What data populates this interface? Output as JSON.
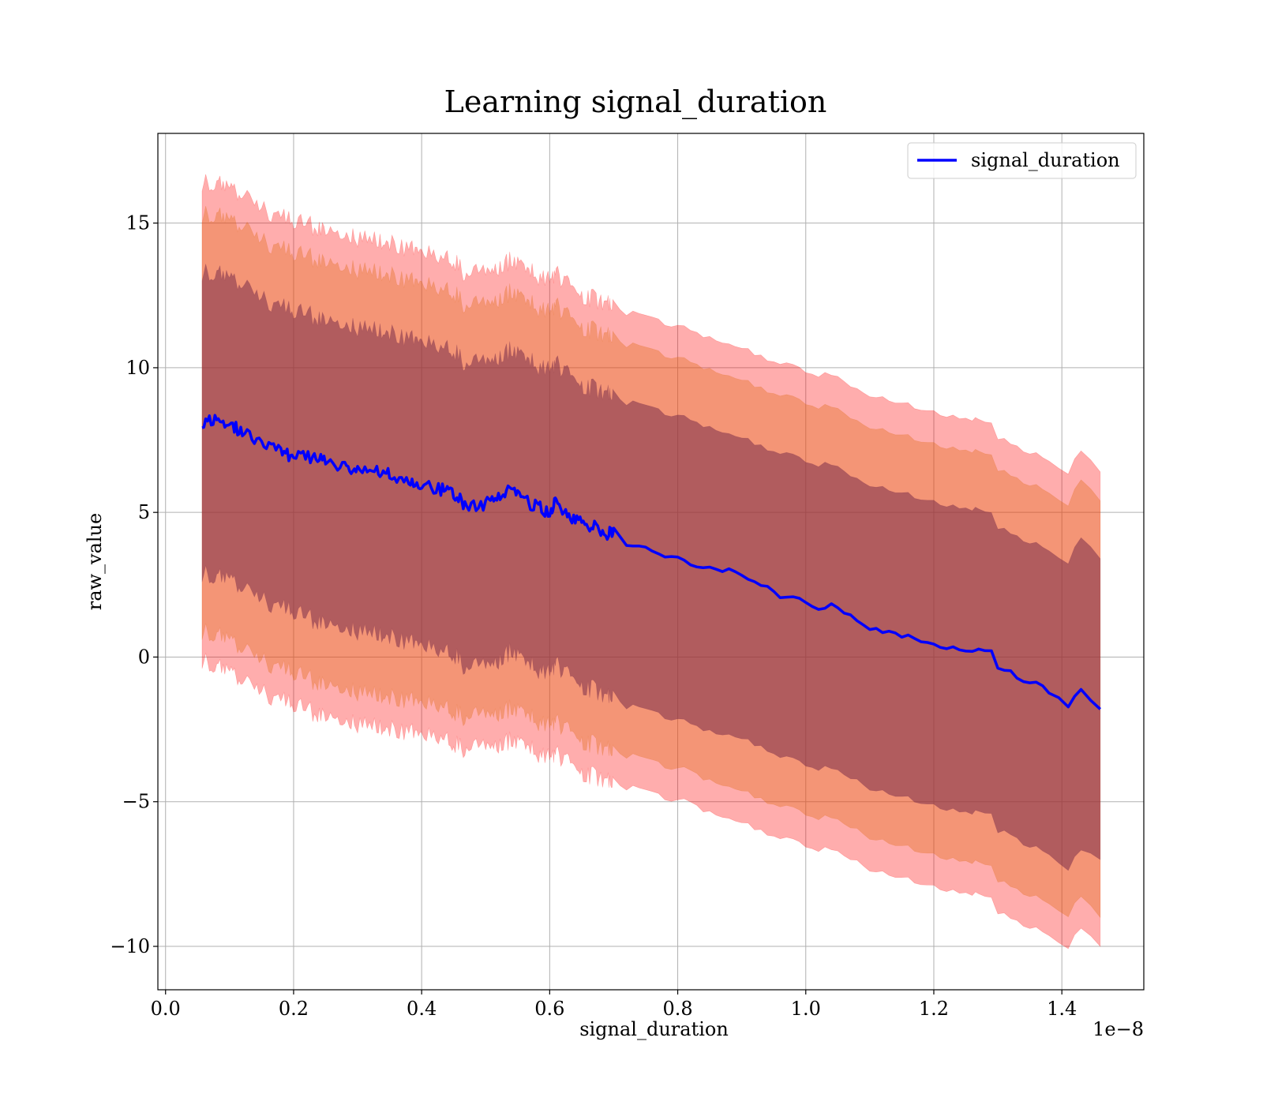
{
  "chart_data": {
    "type": "line",
    "title": "Learning signal_duration",
    "xlabel": "signal_duration",
    "ylabel": "raw_value",
    "x_offset_label": "1e−8",
    "x_scale": 1e-08,
    "xlim": [
      -0.012,
      1.528
    ],
    "ylim": [
      -11.5,
      18.1
    ],
    "x_ticks": [
      0.0,
      0.2,
      0.4,
      0.6,
      0.8,
      1.0,
      1.2,
      1.4
    ],
    "x_tick_labels": [
      "0.0",
      "0.2",
      "0.4",
      "0.6",
      "0.8",
      "1.0",
      "1.2",
      "1.4"
    ],
    "y_ticks": [
      -10,
      -5,
      0,
      5,
      10,
      15
    ],
    "y_tick_labels": [
      "−10",
      "−5",
      "0",
      "5",
      "10",
      "15"
    ],
    "grid": true,
    "legend": {
      "position": "top-right",
      "entries": [
        "signal_duration"
      ]
    },
    "colors": {
      "line": "#0000ff",
      "band_outer": "#ff0000",
      "band_middle": "#e06a10",
      "band_inner": "#7a2d4a"
    },
    "series": [
      {
        "name": "signal_duration",
        "x": [
          0.057,
          0.08,
          0.1,
          0.12,
          0.15,
          0.18,
          0.2,
          0.23,
          0.25,
          0.28,
          0.3,
          0.33,
          0.35,
          0.38,
          0.4,
          0.43,
          0.45,
          0.47,
          0.5,
          0.52,
          0.54,
          0.56,
          0.58,
          0.6,
          0.61,
          0.63,
          0.65,
          0.67,
          0.69,
          0.7,
          0.72,
          0.74,
          0.76,
          0.78,
          0.8,
          0.82,
          0.84,
          0.86,
          0.88,
          0.9,
          0.92,
          0.94,
          0.96,
          0.98,
          1.0,
          1.02,
          1.04,
          1.06,
          1.08,
          1.1,
          1.12,
          1.14,
          1.16,
          1.18,
          1.2,
          1.22,
          1.24,
          1.26,
          1.27,
          1.29,
          1.3,
          1.32,
          1.34,
          1.36,
          1.38,
          1.41,
          1.43,
          1.46
        ],
        "y": [
          8.1,
          8.2,
          8.0,
          7.8,
          7.4,
          7.1,
          6.9,
          6.9,
          6.8,
          6.6,
          6.5,
          6.4,
          6.3,
          6.1,
          6.0,
          5.8,
          5.7,
          5.2,
          5.3,
          5.5,
          5.8,
          5.4,
          5.2,
          5.0,
          5.4,
          4.9,
          4.6,
          4.5,
          4.2,
          4.4,
          3.9,
          3.9,
          3.7,
          3.5,
          3.5,
          3.2,
          3.1,
          3.0,
          3.0,
          2.8,
          2.6,
          2.4,
          2.1,
          2.1,
          1.9,
          1.7,
          1.8,
          1.5,
          1.3,
          1.0,
          0.9,
          0.8,
          0.7,
          0.5,
          0.5,
          0.3,
          0.3,
          0.2,
          0.25,
          0.2,
          -0.4,
          -0.5,
          -0.9,
          -0.9,
          -1.2,
          -1.7,
          -1.1,
          -1.8
        ],
        "lower_outer": [
          -0.1,
          -0.3,
          -0.6,
          -0.9,
          -1.2,
          -1.5,
          -1.7,
          -1.9,
          -2.0,
          -2.2,
          -2.3,
          -2.4,
          -2.5,
          -2.6,
          -2.7,
          -2.8,
          -3.0,
          -3.2,
          -3.1,
          -3.0,
          -2.9,
          -3.1,
          -3.3,
          -3.5,
          -3.3,
          -3.7,
          -4.0,
          -4.1,
          -4.3,
          -4.2,
          -4.5,
          -4.5,
          -4.7,
          -4.9,
          -4.9,
          -5.1,
          -5.3,
          -5.4,
          -5.5,
          -5.7,
          -5.9,
          -6.1,
          -6.3,
          -6.3,
          -6.5,
          -6.7,
          -6.6,
          -6.9,
          -7.1,
          -7.4,
          -7.5,
          -7.6,
          -7.7,
          -7.9,
          -7.9,
          -8.1,
          -8.1,
          -8.2,
          -8.2,
          -8.3,
          -8.8,
          -9.0,
          -9.3,
          -9.3,
          -9.6,
          -10.0,
          -9.4,
          -10.0
        ],
        "lower_middle": [
          0.9,
          0.8,
          0.5,
          0.2,
          -0.1,
          -0.4,
          -0.6,
          -0.8,
          -0.9,
          -1.1,
          -1.2,
          -1.3,
          -1.4,
          -1.5,
          -1.6,
          -1.7,
          -1.9,
          -2.1,
          -2.0,
          -1.9,
          -1.8,
          -2.0,
          -2.2,
          -2.4,
          -2.2,
          -2.6,
          -2.9,
          -3.0,
          -3.2,
          -3.1,
          -3.4,
          -3.4,
          -3.6,
          -3.8,
          -3.8,
          -4.0,
          -4.2,
          -4.3,
          -4.4,
          -4.6,
          -4.8,
          -5.0,
          -5.2,
          -5.2,
          -5.4,
          -5.6,
          -5.5,
          -5.8,
          -6.0,
          -6.3,
          -6.4,
          -6.5,
          -6.6,
          -6.8,
          -6.8,
          -7.0,
          -7.0,
          -7.1,
          -7.1,
          -7.2,
          -7.7,
          -7.9,
          -8.2,
          -8.2,
          -8.5,
          -8.9,
          -8.3,
          -9.0
        ],
        "lower_inner": [
          2.9,
          2.8,
          2.6,
          2.3,
          2.0,
          1.7,
          1.5,
          1.3,
          1.2,
          1.0,
          0.9,
          0.8,
          0.7,
          0.5,
          0.4,
          0.2,
          0.1,
          -0.4,
          -0.3,
          -0.1,
          0.2,
          -0.2,
          -0.4,
          -0.6,
          -0.2,
          -0.7,
          -1.0,
          -1.1,
          -1.4,
          -1.2,
          -1.7,
          -1.7,
          -1.9,
          -2.1,
          -2.1,
          -2.4,
          -2.5,
          -2.6,
          -2.6,
          -2.8,
          -3.0,
          -3.2,
          -3.5,
          -3.5,
          -3.7,
          -3.9,
          -3.8,
          -4.1,
          -4.3,
          -4.6,
          -4.7,
          -4.8,
          -4.9,
          -5.1,
          -5.1,
          -5.3,
          -5.3,
          -5.4,
          -5.35,
          -5.4,
          -6.0,
          -6.1,
          -6.5,
          -6.5,
          -6.8,
          -7.3,
          -6.7,
          -7.0
        ],
        "upper_inner": [
          13.3,
          13.3,
          13.0,
          12.8,
          12.4,
          12.1,
          11.9,
          11.8,
          11.7,
          11.5,
          11.4,
          11.3,
          11.2,
          11.0,
          10.9,
          10.7,
          10.6,
          10.1,
          10.2,
          10.4,
          10.6,
          10.3,
          10.1,
          9.9,
          10.2,
          9.7,
          9.4,
          9.3,
          9.1,
          9.2,
          8.8,
          8.8,
          8.6,
          8.4,
          8.4,
          8.1,
          8.0,
          7.9,
          7.8,
          7.6,
          7.4,
          7.2,
          7.0,
          7.0,
          6.8,
          6.6,
          6.7,
          6.4,
          6.1,
          5.9,
          5.8,
          5.7,
          5.6,
          5.4,
          5.4,
          5.2,
          5.2,
          5.1,
          5.1,
          5.0,
          4.5,
          4.3,
          4.0,
          4.0,
          3.7,
          3.3,
          4.1,
          3.4
        ],
        "upper_middle": [
          15.3,
          15.3,
          15.0,
          14.8,
          14.4,
          14.1,
          13.9,
          13.8,
          13.7,
          13.5,
          13.4,
          13.3,
          13.2,
          13.0,
          12.9,
          12.7,
          12.6,
          12.1,
          12.2,
          12.4,
          12.6,
          12.3,
          12.1,
          11.9,
          12.2,
          11.7,
          11.4,
          11.3,
          11.1,
          11.2,
          10.8,
          10.8,
          10.6,
          10.4,
          10.4,
          10.1,
          10.0,
          9.9,
          9.8,
          9.6,
          9.4,
          9.2,
          9.0,
          9.0,
          8.8,
          8.6,
          8.7,
          8.4,
          8.1,
          7.9,
          7.8,
          7.7,
          7.6,
          7.4,
          7.4,
          7.2,
          7.2,
          7.1,
          7.1,
          7.0,
          6.5,
          6.3,
          6.0,
          6.0,
          5.7,
          5.3,
          6.1,
          5.4
        ],
        "upper_outer": [
          16.4,
          16.4,
          16.1,
          15.9,
          15.5,
          15.2,
          15.0,
          14.9,
          14.8,
          14.6,
          14.5,
          14.4,
          14.3,
          14.1,
          14.0,
          13.8,
          13.7,
          13.2,
          13.3,
          13.5,
          13.7,
          13.4,
          13.2,
          13.0,
          13.3,
          12.8,
          12.5,
          12.4,
          12.2,
          12.3,
          11.9,
          11.9,
          11.7,
          11.5,
          11.5,
          11.2,
          11.1,
          11.0,
          10.9,
          10.7,
          10.5,
          10.3,
          10.1,
          10.1,
          9.9,
          9.7,
          9.8,
          9.5,
          9.2,
          9.0,
          8.9,
          8.8,
          8.7,
          8.5,
          8.5,
          8.3,
          8.3,
          8.2,
          8.2,
          8.1,
          7.6,
          7.4,
          7.1,
          7.1,
          6.8,
          6.4,
          7.1,
          6.4
        ]
      }
    ]
  }
}
